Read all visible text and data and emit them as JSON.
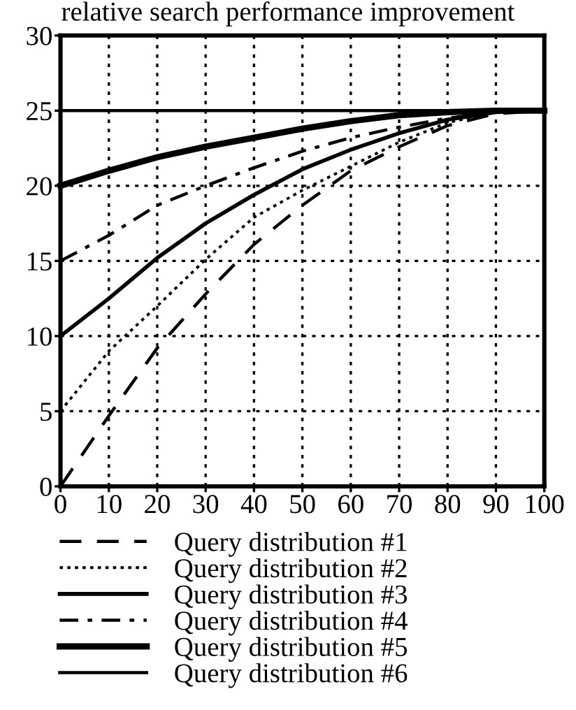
{
  "chart_data": {
    "type": "line",
    "title": "relative search performance improvement",
    "x": [
      0,
      10,
      20,
      30,
      40,
      50,
      60,
      70,
      80,
      90,
      100
    ],
    "series": [
      {
        "name": "Query distribution #1",
        "color": "#000000",
        "line_style": "dashed",
        "values": [
          0,
          4.7,
          9.2,
          12.8,
          16.1,
          18.7,
          21.0,
          22.6,
          24.0,
          24.8,
          25
        ]
      },
      {
        "name": "Query distribution #2",
        "color": "#000000",
        "line_style": "dotted",
        "values": [
          5,
          9.0,
          12.0,
          15.1,
          17.9,
          19.7,
          21.3,
          22.9,
          24.2,
          24.9,
          25
        ]
      },
      {
        "name": "Query distribution #3",
        "color": "#000000",
        "line_style": "solid",
        "values": [
          10,
          12.5,
          15.2,
          17.5,
          19.4,
          21.1,
          22.4,
          23.5,
          24.4,
          24.9,
          25
        ]
      },
      {
        "name": "Query distribution #4",
        "color": "#000000",
        "line_style": "dashdot",
        "values": [
          15,
          16.7,
          18.7,
          20.0,
          21.2,
          22.3,
          23.2,
          23.9,
          24.5,
          24.9,
          25
        ]
      },
      {
        "name": "Query distribution #5",
        "color": "#000000",
        "line_style": "solid",
        "values": [
          20,
          21.0,
          21.9,
          22.6,
          23.2,
          23.8,
          24.3,
          24.7,
          24.9,
          25,
          25
        ]
      },
      {
        "name": "Query distribution #6",
        "color": "#000000",
        "line_style": "solid",
        "values": [
          25,
          25,
          25,
          25,
          25,
          25,
          25,
          25,
          25,
          25,
          25
        ]
      }
    ],
    "xlim": [
      0,
      100
    ],
    "xticks": [
      0,
      10,
      20,
      30,
      40,
      50,
      60,
      70,
      80,
      90,
      100
    ],
    "ylim": [
      0,
      30
    ],
    "yticks": [
      0,
      5,
      10,
      15,
      20,
      25,
      30
    ],
    "grid": true,
    "legend": "bottom"
  }
}
